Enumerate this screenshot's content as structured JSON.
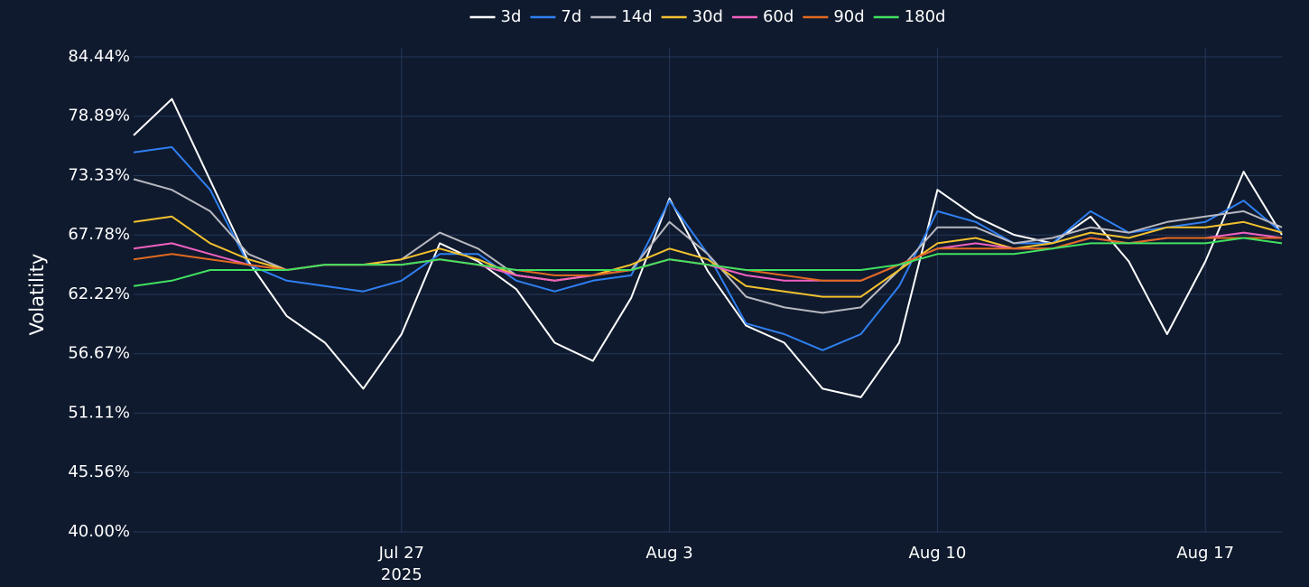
{
  "chart_data": {
    "type": "line",
    "y_label": "Volatility",
    "x": [
      "2025-07-20",
      "2025-07-21",
      "2025-07-22",
      "2025-07-23",
      "2025-07-24",
      "2025-07-25",
      "2025-07-26",
      "2025-07-27",
      "2025-07-28",
      "2025-07-29",
      "2025-07-30",
      "2025-07-31",
      "2025-08-01",
      "2025-08-02",
      "2025-08-03",
      "2025-08-04",
      "2025-08-05",
      "2025-08-06",
      "2025-08-07",
      "2025-08-08",
      "2025-08-09",
      "2025-08-10",
      "2025-08-11",
      "2025-08-12",
      "2025-08-13",
      "2025-08-14",
      "2025-08-15",
      "2025-08-16",
      "2025-08-17",
      "2025-08-18",
      "2025-08-19"
    ],
    "xlim": [
      "2025-07-20",
      "2025-08-19"
    ],
    "xticks": [
      {
        "value": "2025-07-27",
        "label": "Jul 27"
      },
      {
        "value": "2025-08-03",
        "label": "Aug 3"
      },
      {
        "value": "2025-08-10",
        "label": "Aug 10"
      },
      {
        "value": "2025-08-17",
        "label": "Aug 17"
      }
    ],
    "xtick_sublabel": "2025",
    "ylim": [
      40,
      84.44
    ],
    "yticks": [
      {
        "value": 40,
        "label": "40.00%"
      },
      {
        "value": 45.56,
        "label": "45.56%"
      },
      {
        "value": 51.11,
        "label": "51.11%"
      },
      {
        "value": 56.67,
        "label": "56.67%"
      },
      {
        "value": 62.22,
        "label": "62.22%"
      },
      {
        "value": 67.78,
        "label": "67.78%"
      },
      {
        "value": 73.33,
        "label": "73.33%"
      },
      {
        "value": 78.89,
        "label": "78.89%"
      },
      {
        "value": 84.44,
        "label": "84.44%"
      }
    ],
    "grid": true,
    "legend": "top",
    "series": [
      {
        "name": "3d",
        "color": "#ffffff",
        "values": [
          77.1,
          80.5,
          72.9,
          65.3,
          60.2,
          57.7,
          53.4,
          58.5,
          67.0,
          65.3,
          62.7,
          57.7,
          56.0,
          61.9,
          71.2,
          64.4,
          59.3,
          57.7,
          53.4,
          52.6,
          57.7,
          72.0,
          69.5,
          67.8,
          67.0,
          69.5,
          65.3,
          58.5,
          65.3,
          73.7,
          67.8
        ]
      },
      {
        "name": "7d",
        "color": "#2f7ff0",
        "values": [
          75.5,
          76,
          72,
          65,
          63.5,
          63,
          62.5,
          63.5,
          66,
          66,
          63.5,
          62.5,
          63.5,
          64,
          71,
          66,
          59.5,
          58.5,
          57,
          58.5,
          63,
          70,
          69,
          67,
          67,
          70,
          68,
          68.5,
          69,
          71,
          68
        ]
      },
      {
        "name": "14d",
        "color": "#b8b8c0",
        "values": [
          73,
          72,
          70,
          66,
          64.5,
          65,
          65,
          65.5,
          68,
          66.5,
          64,
          63.5,
          64,
          64.5,
          69,
          66,
          62,
          61,
          60.5,
          61,
          64.5,
          68.5,
          68.5,
          67,
          67.5,
          68.5,
          68,
          69,
          69.5,
          70,
          68.5
        ]
      },
      {
        "name": "30d",
        "color": "#f2c12e",
        "values": [
          69,
          69.5,
          67,
          65.5,
          64.5,
          65,
          65,
          65.5,
          66.5,
          65.5,
          64,
          63.5,
          64,
          65,
          66.5,
          65.5,
          63,
          62.5,
          62,
          62,
          64.5,
          67,
          67.5,
          66.5,
          67,
          68,
          67.5,
          68.5,
          68.5,
          69,
          68
        ]
      },
      {
        "name": "60d",
        "color": "#f060c0",
        "values": [
          66.5,
          67,
          66,
          65,
          64.5,
          65,
          65,
          65,
          65.5,
          65,
          64,
          63.5,
          64,
          64.5,
          65.5,
          65,
          64,
          63.5,
          63.5,
          63.5,
          65,
          66.5,
          67,
          66.5,
          66.5,
          67.5,
          67,
          67.5,
          67.5,
          68,
          67.5
        ]
      },
      {
        "name": "90d",
        "color": "#e06a20",
        "values": [
          65.5,
          66,
          65.5,
          65,
          64.5,
          65,
          65,
          65,
          65.5,
          65,
          64.5,
          64,
          64,
          64.5,
          65.5,
          65,
          64.5,
          64,
          63.5,
          63.5,
          65,
          66.5,
          66.5,
          66.5,
          66.5,
          67.5,
          67,
          67.5,
          67.5,
          67.5,
          67.5
        ]
      },
      {
        "name": "180d",
        "color": "#40e060",
        "values": [
          63,
          63.5,
          64.5,
          64.5,
          64.5,
          65,
          65,
          65,
          65.5,
          65,
          64.5,
          64.5,
          64.5,
          64.5,
          65.5,
          65,
          64.5,
          64.5,
          64.5,
          64.5,
          65,
          66,
          66,
          66,
          66.5,
          67,
          67,
          67,
          67,
          67.5,
          67
        ]
      }
    ]
  }
}
